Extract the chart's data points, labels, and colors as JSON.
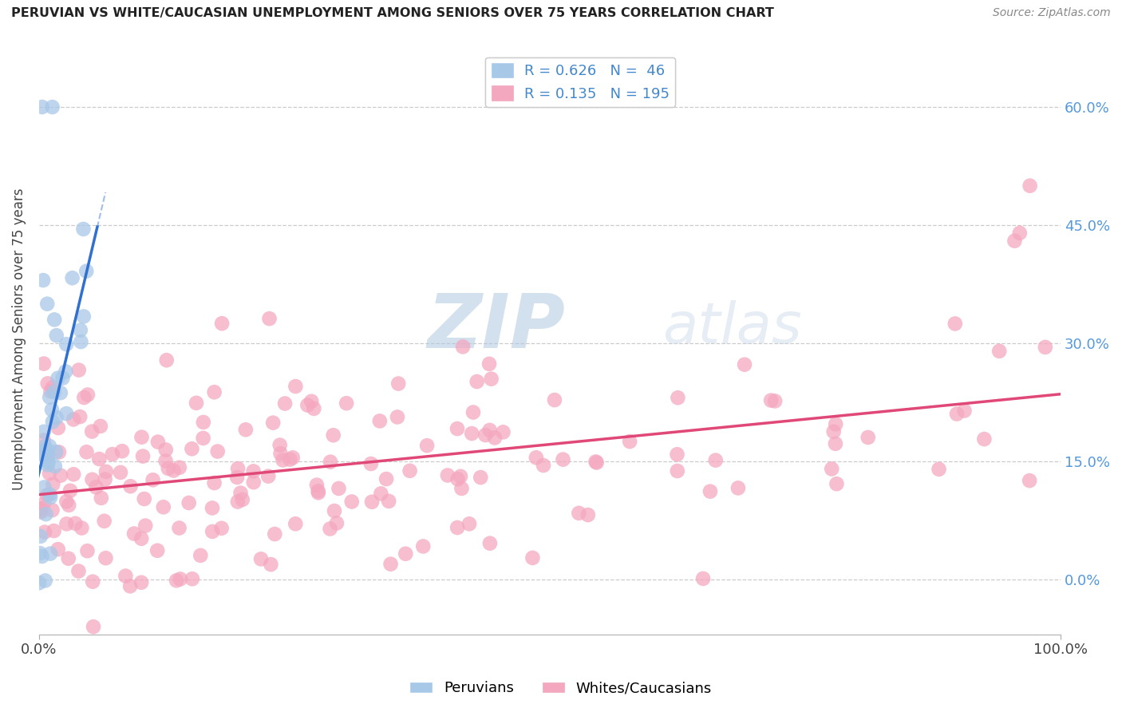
{
  "title": "PERUVIAN VS WHITE/CAUCASIAN UNEMPLOYMENT AMONG SENIORS OVER 75 YEARS CORRELATION CHART",
  "source": "Source: ZipAtlas.com",
  "ylabel": "Unemployment Among Seniors over 75 years",
  "xlim": [
    0.0,
    1.0
  ],
  "ylim": [
    -0.07,
    0.68
  ],
  "yticks": [
    0.0,
    0.15,
    0.3,
    0.45,
    0.6
  ],
  "ytick_labels": [
    "0.0%",
    "15.0%",
    "30.0%",
    "45.0%",
    "60.0%"
  ],
  "peruvian_R": 0.626,
  "peruvian_N": 46,
  "white_R": 0.135,
  "white_N": 195,
  "legend_label_1": "Peruvians",
  "legend_label_2": "Whites/Caucasians",
  "blue_color": "#a8c8e8",
  "pink_color": "#f4a8c0",
  "blue_line_color": "#3070d0",
  "pink_line_color": "#e04878",
  "watermark_zip_color": "#b0c8e0",
  "watermark_atlas_color": "#c8d8e8",
  "background_color": "#ffffff",
  "blue_text_color": "#4488cc",
  "right_tick_color": "#5599dd",
  "seed": 12345
}
